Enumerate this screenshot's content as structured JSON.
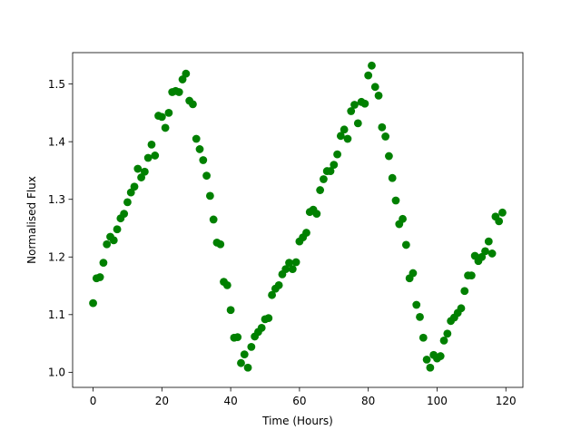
{
  "chart_data": {
    "type": "scatter",
    "title": "",
    "xlabel": "Time (Hours)",
    "ylabel": "Normalised Flux",
    "xlim": [
      -5.95,
      124.95
    ],
    "ylim": [
      0.9738,
      1.5545
    ],
    "xticks": [
      0,
      20,
      40,
      60,
      80,
      100,
      120
    ],
    "yticks": [
      1.0,
      1.1,
      1.2,
      1.3,
      1.4,
      1.5
    ],
    "xtick_labels": [
      "0",
      "20",
      "40",
      "60",
      "80",
      "100",
      "120"
    ],
    "ytick_labels": [
      "1.0",
      "1.1",
      "1.2",
      "1.3",
      "1.4",
      "1.5"
    ],
    "grid": false,
    "legend": "none",
    "marker_color": "#008000",
    "series": [
      {
        "points": [
          [
            0,
            1.12
          ],
          [
            1,
            1.163
          ],
          [
            2,
            1.165
          ],
          [
            3,
            1.19
          ],
          [
            4,
            1.222
          ],
          [
            5,
            1.235
          ],
          [
            6,
            1.229
          ],
          [
            7,
            1.248
          ],
          [
            8,
            1.267
          ],
          [
            9,
            1.275
          ],
          [
            10,
            1.295
          ],
          [
            11,
            1.312
          ],
          [
            12,
            1.322
          ],
          [
            13,
            1.353
          ],
          [
            14,
            1.338
          ],
          [
            15,
            1.348
          ],
          [
            16,
            1.372
          ],
          [
            17,
            1.395
          ],
          [
            18,
            1.376
          ],
          [
            19,
            1.445
          ],
          [
            20,
            1.443
          ],
          [
            21,
            1.424
          ],
          [
            22,
            1.45
          ],
          [
            23,
            1.486
          ],
          [
            24,
            1.488
          ],
          [
            25,
            1.486
          ],
          [
            26,
            1.508
          ],
          [
            27,
            1.518
          ],
          [
            28,
            1.471
          ],
          [
            29,
            1.465
          ],
          [
            30,
            1.405
          ],
          [
            31,
            1.387
          ],
          [
            32,
            1.368
          ],
          [
            33,
            1.341
          ],
          [
            34,
            1.306
          ],
          [
            35,
            1.265
          ],
          [
            36,
            1.225
          ],
          [
            37,
            1.222
          ],
          [
            38,
            1.157
          ],
          [
            39,
            1.151
          ],
          [
            40,
            1.108
          ],
          [
            41,
            1.06
          ],
          [
            42,
            1.061
          ],
          [
            43,
            1.016
          ],
          [
            44,
            1.031
          ],
          [
            45,
            1.008
          ],
          [
            46,
            1.044
          ],
          [
            47,
            1.062
          ],
          [
            48,
            1.07
          ],
          [
            49,
            1.077
          ],
          [
            50,
            1.092
          ],
          [
            51,
            1.094
          ],
          [
            52,
            1.134
          ],
          [
            53,
            1.145
          ],
          [
            54,
            1.151
          ],
          [
            55,
            1.17
          ],
          [
            56,
            1.179
          ],
          [
            57,
            1.19
          ],
          [
            58,
            1.179
          ],
          [
            59,
            1.191
          ],
          [
            60,
            1.227
          ],
          [
            61,
            1.234
          ],
          [
            62,
            1.242
          ],
          [
            63,
            1.278
          ],
          [
            64,
            1.282
          ],
          [
            65,
            1.275
          ],
          [
            66,
            1.316
          ],
          [
            67,
            1.335
          ],
          [
            68,
            1.349
          ],
          [
            69,
            1.349
          ],
          [
            70,
            1.36
          ],
          [
            71,
            1.378
          ],
          [
            72,
            1.41
          ],
          [
            73,
            1.421
          ],
          [
            74,
            1.405
          ],
          [
            75,
            1.453
          ],
          [
            76,
            1.464
          ],
          [
            77,
            1.432
          ],
          [
            78,
            1.469
          ],
          [
            79,
            1.466
          ],
          [
            80,
            1.515
          ],
          [
            81,
            1.532
          ],
          [
            82,
            1.495
          ],
          [
            83,
            1.48
          ],
          [
            84,
            1.425
          ],
          [
            85,
            1.409
          ],
          [
            86,
            1.375
          ],
          [
            87,
            1.337
          ],
          [
            88,
            1.298
          ],
          [
            89,
            1.257
          ],
          [
            90,
            1.266
          ],
          [
            91,
            1.221
          ],
          [
            92,
            1.163
          ],
          [
            93,
            1.172
          ],
          [
            94,
            1.117
          ],
          [
            95,
            1.096
          ],
          [
            96,
            1.06
          ],
          [
            97,
            1.022
          ],
          [
            98,
            1.008
          ],
          [
            99,
            1.03
          ],
          [
            100,
            1.024
          ],
          [
            101,
            1.028
          ],
          [
            102,
            1.055
          ],
          [
            103,
            1.067
          ],
          [
            104,
            1.089
          ],
          [
            105,
            1.095
          ],
          [
            106,
            1.103
          ],
          [
            107,
            1.111
          ],
          [
            108,
            1.141
          ],
          [
            109,
            1.168
          ],
          [
            110,
            1.168
          ],
          [
            111,
            1.202
          ],
          [
            112,
            1.193
          ],
          [
            113,
            1.2
          ],
          [
            114,
            1.21
          ],
          [
            115,
            1.227
          ],
          [
            116,
            1.206
          ],
          [
            117,
            1.27
          ],
          [
            118,
            1.262
          ],
          [
            119,
            1.277
          ]
        ]
      }
    ]
  }
}
